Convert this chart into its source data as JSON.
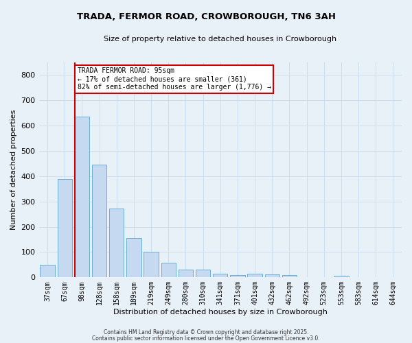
{
  "title": "TRADA, FERMOR ROAD, CROWBOROUGH, TN6 3AH",
  "subtitle": "Size of property relative to detached houses in Crowborough",
  "xlabel": "Distribution of detached houses by size in Crowborough",
  "ylabel": "Number of detached properties",
  "bin_labels": [
    "37sqm",
    "67sqm",
    "98sqm",
    "128sqm",
    "158sqm",
    "189sqm",
    "219sqm",
    "249sqm",
    "280sqm",
    "310sqm",
    "341sqm",
    "371sqm",
    "401sqm",
    "432sqm",
    "462sqm",
    "492sqm",
    "523sqm",
    "553sqm",
    "583sqm",
    "614sqm",
    "644sqm"
  ],
  "bar_heights": [
    50,
    390,
    635,
    445,
    272,
    155,
    100,
    57,
    30,
    30,
    15,
    10,
    15,
    12,
    8,
    0,
    0,
    7,
    0,
    0,
    0
  ],
  "bar_color": "#c5d9f0",
  "bar_edge_color": "#6baed6",
  "bar_edge_width": 0.7,
  "vline_x_bin": 2,
  "vline_color": "#cc0000",
  "annotation_text": "TRADA FERMOR ROAD: 95sqm\n← 17% of detached houses are smaller (361)\n82% of semi-detached houses are larger (1,776) →",
  "annotation_box_color": "#ffffff",
  "annotation_box_edge": "#cc0000",
  "ylim": [
    0,
    850
  ],
  "yticks": [
    0,
    100,
    200,
    300,
    400,
    500,
    600,
    700,
    800
  ],
  "grid_color": "#ccddf0",
  "background_color": "#e8f0f8",
  "footer_line1": "Contains HM Land Registry data © Crown copyright and database right 2025.",
  "footer_line2": "Contains public sector information licensed under the Open Government Licence v3.0."
}
